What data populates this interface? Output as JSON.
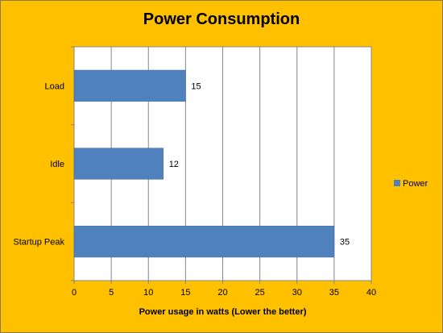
{
  "chart_data": {
    "type": "bar",
    "orientation": "horizontal",
    "title": "Power Consumption",
    "xlabel": "Power usage in watts (Lower the better)",
    "ylabel": "",
    "categories": [
      "Load",
      "Idle",
      "Startup Peak"
    ],
    "series": [
      {
        "name": "Power",
        "values": [
          15,
          12,
          35
        ]
      }
    ],
    "xlim": [
      0,
      40
    ],
    "xticks": [
      0,
      5,
      10,
      15,
      20,
      25,
      30,
      35,
      40
    ],
    "grid": true,
    "legend_position": "right",
    "colors": {
      "background": "#FFC000",
      "plot_area": "#FFFFFF",
      "bar": "#4F81BD",
      "grid": "#868686"
    }
  }
}
